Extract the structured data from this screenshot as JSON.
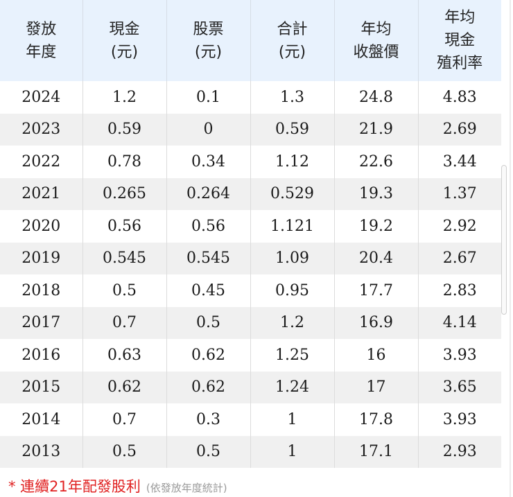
{
  "table": {
    "headers": [
      [
        "發放",
        "年度"
      ],
      [
        "現金",
        "(元)"
      ],
      [
        "股票",
        "(元)"
      ],
      [
        "合計",
        "(元)"
      ],
      [
        "年均",
        "收盤價"
      ],
      [
        "年均",
        "現金",
        "殖利率"
      ]
    ],
    "rows": [
      [
        "2024",
        "1.2",
        "0.1",
        "1.3",
        "24.8",
        "4.83"
      ],
      [
        "2023",
        "0.59",
        "0",
        "0.59",
        "21.9",
        "2.69"
      ],
      [
        "2022",
        "0.78",
        "0.34",
        "1.12",
        "22.6",
        "3.44"
      ],
      [
        "2021",
        "0.265",
        "0.264",
        "0.529",
        "19.3",
        "1.37"
      ],
      [
        "2020",
        "0.56",
        "0.56",
        "1.121",
        "19.2",
        "2.92"
      ],
      [
        "2019",
        "0.545",
        "0.545",
        "1.09",
        "20.4",
        "2.67"
      ],
      [
        "2018",
        "0.5",
        "0.45",
        "0.95",
        "17.7",
        "2.83"
      ],
      [
        "2017",
        "0.7",
        "0.5",
        "1.2",
        "16.9",
        "4.14"
      ],
      [
        "2016",
        "0.63",
        "0.62",
        "1.25",
        "16",
        "3.93"
      ],
      [
        "2015",
        "0.62",
        "0.62",
        "1.24",
        "17",
        "3.65"
      ],
      [
        "2014",
        "0.7",
        "0.3",
        "1",
        "17.8",
        "3.93"
      ],
      [
        "2013",
        "0.5",
        "0.5",
        "1",
        "17.1",
        "2.93"
      ]
    ]
  },
  "footnote": {
    "main": "* 連續21年配發股利",
    "sub": "(依發放年度統計)"
  },
  "colors": {
    "header_bg": "#e8f2fd",
    "stripe_bg": "#f0f0f0",
    "footnote_red": "#e02020",
    "footnote_gray": "#999999"
  }
}
